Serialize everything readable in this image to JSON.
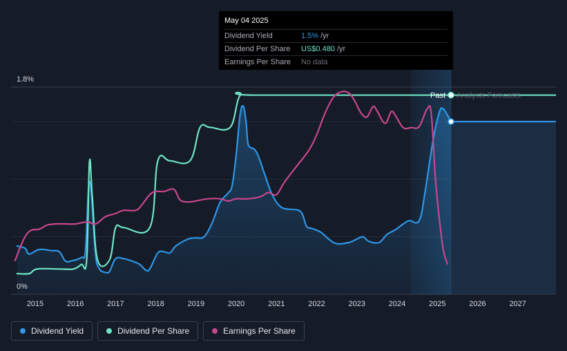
{
  "tooltip": {
    "date": "May 04 2025",
    "rows": [
      {
        "label": "Dividend Yield",
        "value": "1.5%",
        "unit": "/yr",
        "color": "#2e97e8"
      },
      {
        "label": "Dividend Per Share",
        "value": "US$0.480",
        "unit": "/yr",
        "color": "#6ee6c6"
      },
      {
        "label": "Earnings Per Share",
        "value": "No data",
        "unit": "",
        "color": "#6b6f77"
      }
    ]
  },
  "markers": {
    "past": "Past",
    "forecast": "Analysts Forecasts"
  },
  "legend": [
    {
      "label": "Dividend Yield",
      "color": "#2e97e8"
    },
    {
      "label": "Dividend Per Share",
      "color": "#6ee6c6"
    },
    {
      "label": "Earnings Per Share",
      "color": "#c9478d"
    }
  ],
  "chart_data": {
    "type": "line",
    "x_range": [
      2014.4,
      2027.95
    ],
    "y_range_pct": [
      0,
      1.8
    ],
    "y_ticks": [
      {
        "value": 1.8,
        "label": "1.8%"
      },
      {
        "value": 0,
        "label": "0%"
      }
    ],
    "x_ticks": [
      {
        "value": 2015,
        "label": "2015"
      },
      {
        "value": 2016,
        "label": "2016"
      },
      {
        "value": 2017,
        "label": "2017"
      },
      {
        "value": 2018,
        "label": "2018"
      },
      {
        "value": 2019,
        "label": "2019"
      },
      {
        "value": 2020,
        "label": "2020"
      },
      {
        "value": 2021,
        "label": "2021"
      },
      {
        "value": 2022,
        "label": "2022"
      },
      {
        "value": 2023,
        "label": "2023"
      },
      {
        "value": 2024,
        "label": "2024"
      },
      {
        "value": 2025,
        "label": "2025"
      },
      {
        "value": 2026,
        "label": "2026"
      },
      {
        "value": 2027,
        "label": "2027"
      }
    ],
    "grid": true,
    "current_date": 2025.34,
    "forecast_shade_start": 2024.33,
    "series": [
      {
        "name": "Dividend Yield",
        "color": "#2e97e8",
        "axis": "percent",
        "area": true,
        "points": [
          [
            2014.55,
            0.42
          ],
          [
            2014.75,
            0.4
          ],
          [
            2014.85,
            0.35
          ],
          [
            2015.1,
            0.39
          ],
          [
            2015.4,
            0.38
          ],
          [
            2015.6,
            0.37
          ],
          [
            2015.75,
            0.29
          ],
          [
            2015.9,
            0.29
          ],
          [
            2016.15,
            0.32
          ],
          [
            2016.25,
            0.38
          ],
          [
            2016.33,
            0.94
          ],
          [
            2016.4,
            0.86
          ],
          [
            2016.5,
            0.35
          ],
          [
            2016.6,
            0.22
          ],
          [
            2016.75,
            0.19
          ],
          [
            2016.85,
            0.2
          ],
          [
            2017.0,
            0.31
          ],
          [
            2017.2,
            0.31
          ],
          [
            2017.4,
            0.29
          ],
          [
            2017.6,
            0.26
          ],
          [
            2017.75,
            0.21
          ],
          [
            2017.85,
            0.22
          ],
          [
            2018.05,
            0.36
          ],
          [
            2018.2,
            0.37
          ],
          [
            2018.35,
            0.36
          ],
          [
            2018.5,
            0.42
          ],
          [
            2018.8,
            0.48
          ],
          [
            2019.0,
            0.49
          ],
          [
            2019.2,
            0.5
          ],
          [
            2019.4,
            0.62
          ],
          [
            2019.6,
            0.8
          ],
          [
            2019.8,
            0.88
          ],
          [
            2019.9,
            0.95
          ],
          [
            2020.0,
            1.22
          ],
          [
            2020.1,
            1.57
          ],
          [
            2020.18,
            1.63
          ],
          [
            2020.25,
            1.48
          ],
          [
            2020.3,
            1.3
          ],
          [
            2020.45,
            1.26
          ],
          [
            2020.55,
            1.2
          ],
          [
            2020.7,
            1.05
          ],
          [
            2020.85,
            0.9
          ],
          [
            2021.0,
            0.8
          ],
          [
            2021.15,
            0.75
          ],
          [
            2021.3,
            0.74
          ],
          [
            2021.55,
            0.73
          ],
          [
            2021.65,
            0.69
          ],
          [
            2021.75,
            0.59
          ],
          [
            2021.9,
            0.57
          ],
          [
            2022.1,
            0.54
          ],
          [
            2022.3,
            0.48
          ],
          [
            2022.5,
            0.44
          ],
          [
            2022.8,
            0.45
          ],
          [
            2023.0,
            0.48
          ],
          [
            2023.15,
            0.5
          ],
          [
            2023.3,
            0.46
          ],
          [
            2023.55,
            0.45
          ],
          [
            2023.75,
            0.52
          ],
          [
            2023.95,
            0.56
          ],
          [
            2024.15,
            0.61
          ],
          [
            2024.3,
            0.64
          ],
          [
            2024.55,
            0.64
          ],
          [
            2024.7,
            0.9
          ],
          [
            2024.9,
            1.35
          ],
          [
            2025.05,
            1.58
          ],
          [
            2025.15,
            1.61
          ],
          [
            2025.34,
            1.5
          ]
        ],
        "forecast": [
          [
            2025.34,
            1.5
          ],
          [
            2027.95,
            1.5
          ]
        ]
      },
      {
        "name": "Dividend Per Share",
        "color": "#6ee6c6",
        "axis": "percent",
        "points": [
          [
            2014.55,
            0.18
          ],
          [
            2014.85,
            0.18
          ],
          [
            2015.05,
            0.22
          ],
          [
            2015.6,
            0.22
          ],
          [
            2015.95,
            0.22
          ],
          [
            2016.15,
            0.26
          ],
          [
            2016.28,
            0.3
          ],
          [
            2016.35,
            1.15
          ],
          [
            2016.42,
            0.85
          ],
          [
            2016.55,
            0.3
          ],
          [
            2016.85,
            0.3
          ],
          [
            2017.0,
            0.58
          ],
          [
            2017.2,
            0.58
          ],
          [
            2017.85,
            0.58
          ],
          [
            2018.05,
            1.16
          ],
          [
            2018.35,
            1.16
          ],
          [
            2018.85,
            1.16
          ],
          [
            2019.1,
            1.45
          ],
          [
            2019.35,
            1.45
          ],
          [
            2019.85,
            1.45
          ],
          [
            2020.1,
            1.73
          ],
          [
            2020.5,
            1.73
          ],
          [
            2025.34,
            1.73
          ]
        ],
        "forecast": [
          [
            2025.34,
            1.73
          ],
          [
            2027.95,
            1.73
          ]
        ]
      },
      {
        "name": "Earnings Per Share",
        "color": "#c9478d",
        "axis": "earnings",
        "points": [
          [
            2014.5,
            0.15
          ],
          [
            2014.6,
            0.25
          ],
          [
            2014.75,
            0.38
          ],
          [
            2014.9,
            0.44
          ],
          [
            2015.1,
            0.45
          ],
          [
            2015.3,
            0.49
          ],
          [
            2015.5,
            0.5
          ],
          [
            2015.8,
            0.5
          ],
          [
            2016.0,
            0.5
          ],
          [
            2016.3,
            0.52
          ],
          [
            2016.5,
            0.5
          ],
          [
            2016.75,
            0.57
          ],
          [
            2017.0,
            0.6
          ],
          [
            2017.2,
            0.63
          ],
          [
            2017.5,
            0.63
          ],
          [
            2017.65,
            0.68
          ],
          [
            2017.85,
            0.78
          ],
          [
            2018.0,
            0.81
          ],
          [
            2018.2,
            0.81
          ],
          [
            2018.45,
            0.83
          ],
          [
            2018.6,
            0.73
          ],
          [
            2018.8,
            0.71
          ],
          [
            2019.0,
            0.72
          ],
          [
            2019.3,
            0.74
          ],
          [
            2019.6,
            0.74
          ],
          [
            2019.8,
            0.72
          ],
          [
            2020.0,
            0.74
          ],
          [
            2020.3,
            0.74
          ],
          [
            2020.6,
            0.76
          ],
          [
            2020.8,
            0.8
          ],
          [
            2021.0,
            0.78
          ],
          [
            2021.2,
            0.9
          ],
          [
            2021.5,
            1.05
          ],
          [
            2021.8,
            1.2
          ],
          [
            2022.0,
            1.35
          ],
          [
            2022.2,
            1.55
          ],
          [
            2022.4,
            1.7
          ],
          [
            2022.6,
            1.76
          ],
          [
            2022.8,
            1.75
          ],
          [
            2022.95,
            1.67
          ],
          [
            2023.1,
            1.56
          ],
          [
            2023.25,
            1.52
          ],
          [
            2023.4,
            1.62
          ],
          [
            2023.5,
            1.58
          ],
          [
            2023.7,
            1.46
          ],
          [
            2023.85,
            1.57
          ],
          [
            2023.95,
            1.54
          ],
          [
            2024.15,
            1.42
          ],
          [
            2024.35,
            1.42
          ],
          [
            2024.55,
            1.43
          ],
          [
            2024.75,
            1.6
          ],
          [
            2024.85,
            1.55
          ],
          [
            2024.95,
            0.95
          ],
          [
            2025.05,
            0.55
          ],
          [
            2025.15,
            0.25
          ],
          [
            2025.25,
            0.12
          ]
        ]
      }
    ]
  }
}
